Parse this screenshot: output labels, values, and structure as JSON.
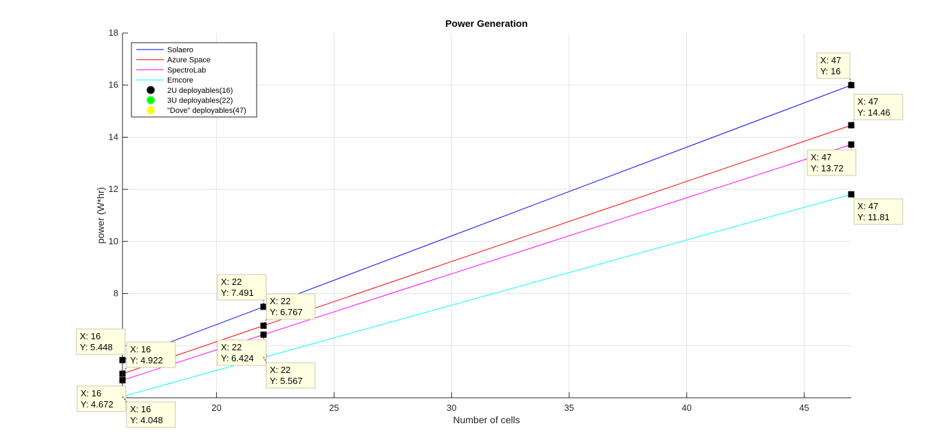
{
  "chart_data": {
    "type": "line",
    "title": "Power Generation",
    "xlabel": "Number of cells",
    "ylabel": "power (W*hr)",
    "xlim": [
      16,
      47
    ],
    "ylim": [
      4,
      18
    ],
    "xticks": [
      "20",
      "25",
      "30",
      "35",
      "40",
      "45"
    ],
    "xtick_values": [
      20,
      25,
      30,
      35,
      40,
      45
    ],
    "yticks": [
      "8",
      "10",
      "12",
      "14",
      "16",
      "18"
    ],
    "ytick_values": [
      8,
      10,
      12,
      14,
      16,
      18
    ],
    "grid": true,
    "legend_position": "top-left",
    "series": [
      {
        "name": "Solaero",
        "color": "#0000ff",
        "x": [
          16,
          47
        ],
        "y": [
          5.448,
          16
        ]
      },
      {
        "name": "Azure Space",
        "color": "#ff0000",
        "x": [
          16,
          47
        ],
        "y": [
          4.922,
          14.46
        ]
      },
      {
        "name": "SpectroLab",
        "color": "#ff00ff",
        "x": [
          16,
          47
        ],
        "y": [
          4.672,
          13.72
        ]
      },
      {
        "name": "Emcore",
        "color": "#00ffff",
        "x": [
          16,
          47
        ],
        "y": [
          4.048,
          11.81
        ]
      }
    ],
    "marker_series": [
      {
        "name": "2U deployables(16)",
        "color": "#000000",
        "x": 16,
        "y": [
          5.448,
          4.922,
          4.672,
          4.048
        ]
      },
      {
        "name": "3U deployables(22)",
        "color": "#00ff00",
        "x": 22,
        "y": [
          7.491,
          6.767,
          6.424,
          5.567
        ]
      },
      {
        "name": "\"Dove\" deployables(47)",
        "color": "#ffff00",
        "x": 47,
        "y": [
          16,
          14.46,
          13.72,
          11.81
        ]
      }
    ],
    "datatips": [
      {
        "x_text": "X: 16",
        "y_text": "Y: 5.448",
        "x": 16,
        "y": 5.448
      },
      {
        "x_text": "X: 16",
        "y_text": "Y: 4.922",
        "x": 16,
        "y": 4.922
      },
      {
        "x_text": "X: 16",
        "y_text": "Y: 4.672",
        "x": 16,
        "y": 4.672
      },
      {
        "x_text": "X: 16",
        "y_text": "Y: 4.048",
        "x": 16,
        "y": 4.048
      },
      {
        "x_text": "X: 22",
        "y_text": "Y: 7.491",
        "x": 22,
        "y": 7.491
      },
      {
        "x_text": "X: 22",
        "y_text": "Y: 6.767",
        "x": 22,
        "y": 6.767
      },
      {
        "x_text": "X: 22",
        "y_text": "Y: 6.424",
        "x": 22,
        "y": 6.424
      },
      {
        "x_text": "X: 22",
        "y_text": "Y: 5.567",
        "x": 22,
        "y": 5.567
      },
      {
        "x_text": "X: 47",
        "y_text": "Y: 16",
        "x": 47,
        "y": 16
      },
      {
        "x_text": "X: 47",
        "y_text": "Y: 14.46",
        "x": 47,
        "y": 14.46
      },
      {
        "x_text": "X: 47",
        "y_text": "Y: 13.72",
        "x": 47,
        "y": 13.72
      },
      {
        "x_text": "X: 47",
        "y_text": "Y: 11.81",
        "x": 47,
        "y": 11.81
      }
    ]
  }
}
